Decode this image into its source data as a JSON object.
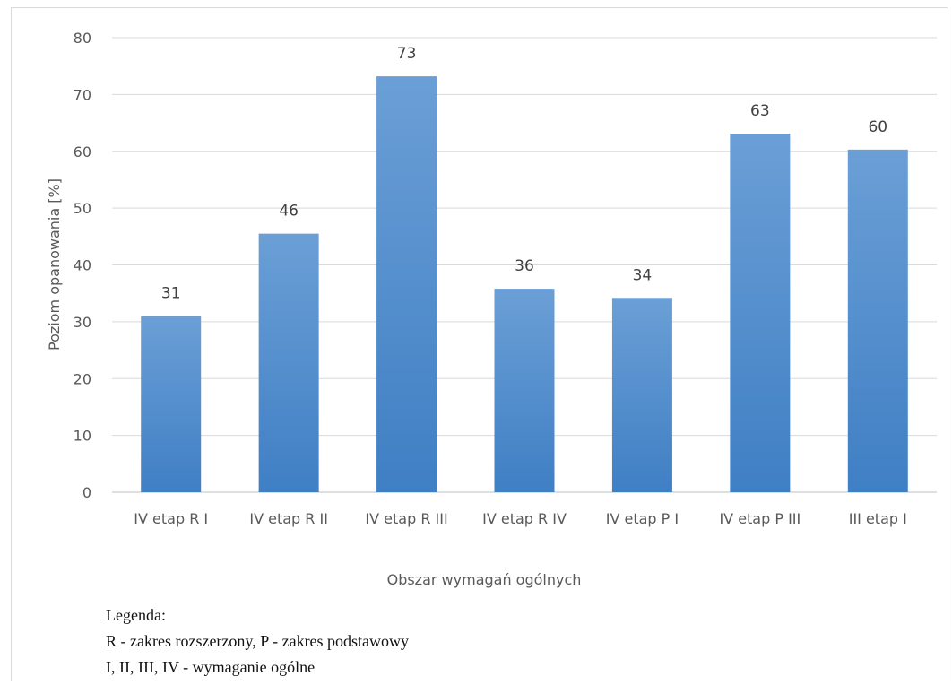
{
  "chart_data": {
    "type": "bar",
    "categories": [
      "IV etap R I",
      "IV etap R II",
      "IV etap R III",
      "IV etap R IV",
      "IV etap P I",
      "IV etap P III",
      "III etap I"
    ],
    "values": [
      31,
      45.5,
      73.2,
      35.8,
      34.2,
      63.1,
      60.3
    ],
    "data_labels": [
      "31",
      "46",
      "73",
      "36",
      "34",
      "63",
      "60"
    ],
    "xlabel": "Obszar wymagań ogólnych",
    "ylabel": "Poziom opanowania [%]",
    "ylim": [
      0,
      80
    ],
    "yticks": [
      "0",
      "10",
      "20",
      "30",
      "40",
      "50",
      "60",
      "70",
      "80"
    ],
    "grid": true,
    "bar_color_top": "#6b9fd6",
    "bar_color_bottom": "#3f7fc4"
  },
  "legend": {
    "title": "Legenda:",
    "line1": "R - zakres rozszerzony, P - zakres podstawowy",
    "line2": "I, II, III, IV - wymaganie ogólne"
  }
}
